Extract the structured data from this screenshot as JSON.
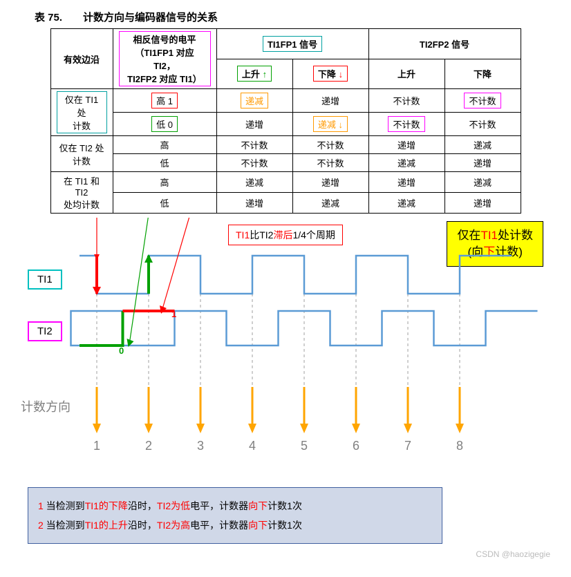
{
  "title": "表 75.　　计数方向与编码器信号的关系",
  "table": {
    "h_edge": "有效边沿",
    "h_opp": {
      "l1": "相反信号的电平",
      "l2": "（TI1FP1 对应 TI2，",
      "l3": "TI2FP2 对应 TI1）"
    },
    "h_t1": "TI1FP1 信号",
    "h_t2": "TI2FP2 信号",
    "sub_up": "上升",
    "sub_down": "下降",
    "r1_edge": {
      "l1": "仅在 TI1 处",
      "l2": "计数"
    },
    "r2_edge": {
      "l1": "仅在 TI2 处",
      "l2": "计数"
    },
    "r3_edge": {
      "l1": "在 TI1 和 TI2",
      "l2": "处均计数"
    },
    "high": "高",
    "low": "低",
    "dec": "递减",
    "inc": "递增",
    "noc": "不计数",
    "hi1": "高 1",
    "lo0": "低 0"
  },
  "boxes": {
    "opp_border": "#ff00ff",
    "t1_border": "#00a0a0",
    "up_border": "#00a000",
    "down_border": "#ff0000",
    "hi1_border": "#ff0000",
    "lo0_border": "#00a000",
    "dec_border": "#ff9900",
    "noc_border": "#ff00ff"
  },
  "signals": {
    "ti1_label": "TI1",
    "ti2_label": "TI2",
    "ti1_border": "#00c0c0",
    "ti2_border": "#ff00ff",
    "wave_color": "#5b9bd5",
    "dash_color": "#bfbfbf",
    "arrow_color": "#ffa500",
    "green": "#00a000",
    "red": "#ff0000",
    "zero": "0",
    "one": "1"
  },
  "note": {
    "pre": "TI1",
    "mid": "比TI2",
    "red": "滞后",
    "post": "1/4个周期"
  },
  "yellow": {
    "l1a": "仅在",
    "l1b": "TI1",
    "l1c": "处计数",
    "l2a": "(向",
    "l2b": "下",
    "l2c": "计数)"
  },
  "countdir": "计数方向",
  "nums": [
    "1",
    "2",
    "3",
    "4",
    "5",
    "6",
    "7",
    "8"
  ],
  "bottom": {
    "l1": {
      "n": "1",
      "a": " 当检测到",
      "b": "TI1的下降",
      "c": "沿时，",
      "d": "TI2为低",
      "e": "电平，计数器",
      "f": "向下",
      "g": "计数1次"
    },
    "l2": {
      "n": "2",
      "a": " 当检测到",
      "b": "TI1的上升",
      "c": "沿时，",
      "d": "TI2为高",
      "e": "电平，计数器",
      "f": "向下",
      "g": "计数1次"
    }
  },
  "watermark": "CSDN @haozigegie",
  "colors": {
    "red": "#ff0000",
    "black": "#000000"
  }
}
